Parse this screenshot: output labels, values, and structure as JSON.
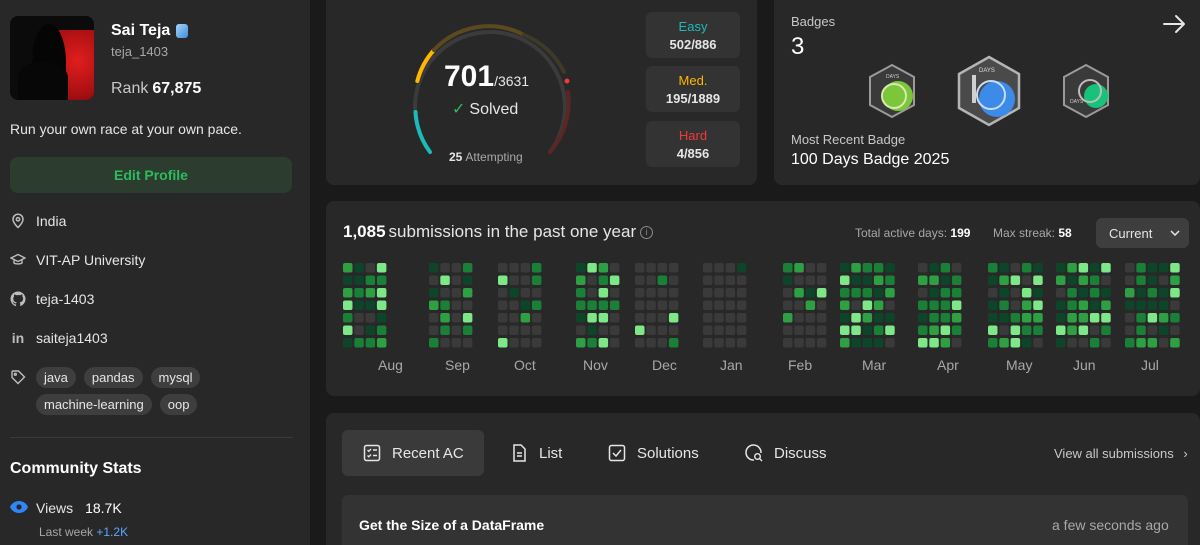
{
  "profile": {
    "name": "Sai Teja",
    "handle": "teja_1403",
    "rank_label": "Rank",
    "rank_value": "67,875",
    "bio": "Run your own race at your own pace.",
    "edit_label": "Edit Profile",
    "location": "India",
    "university": "VIT-AP University",
    "github": "teja-1403",
    "linkedin": "saiteja1403",
    "skills": [
      "java",
      "pandas",
      "mysql",
      "machine-learning",
      "oop"
    ]
  },
  "community": {
    "title": "Community Stats",
    "views_label": "Views",
    "views_value": "18.7K",
    "last_week_label": "Last week",
    "last_week_value": "+1.2K"
  },
  "solved": {
    "solved": "701",
    "total": "/3631",
    "solved_label": "Solved",
    "attempting_count": "25",
    "attempting_label": "Attempting",
    "easy_label": "Easy",
    "easy_value": "502/886",
    "medium_label": "Med.",
    "medium_value": "195/1889",
    "hard_label": "Hard",
    "hard_value": "4/856",
    "colors": {
      "easy": "#1cbaba",
      "medium": "#ffb700",
      "hard": "#f63737"
    }
  },
  "badges": {
    "title": "Badges",
    "count": "3",
    "badge_day_labels": [
      "DAYS",
      "DAYS",
      "DAYS"
    ],
    "recent_label": "Most Recent Badge",
    "recent_value": "100 Days Badge 2025"
  },
  "submissions": {
    "count": "1,085",
    "label": "submissions in the past one year",
    "total_active_label": "Total active days:",
    "total_active_value": "199",
    "max_streak_label": "Max streak:",
    "max_streak_value": "58",
    "period": "Current",
    "months": [
      "Aug",
      "Sep",
      "Oct",
      "Nov",
      "Dec",
      "Jan",
      "Feb",
      "Mar",
      "Apr",
      "May",
      "Jun",
      "Jul"
    ]
  },
  "tabs": {
    "recent_ac": "Recent AC",
    "list": "List",
    "solutions": "Solutions",
    "discuss": "Discuss",
    "view_all": "View all submissions"
  },
  "recent_items": [
    {
      "title": "Get the Size of a DataFrame",
      "time": "a few seconds ago"
    }
  ]
}
